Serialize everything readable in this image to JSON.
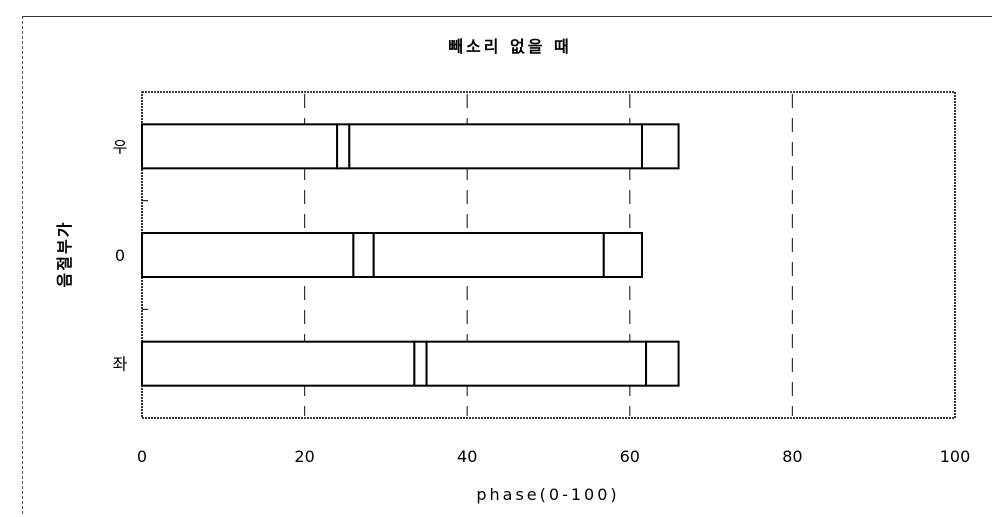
{
  "chart_data": {
    "type": "bar",
    "orientation": "horizontal",
    "stacked": true,
    "title": "빼소리 없을 때",
    "xlabel": "phase(0-100)",
    "ylabel": "음절부가",
    "xlim": [
      0,
      100
    ],
    "xticks": [
      "0",
      "20",
      "40",
      "60",
      "80",
      "100"
    ],
    "categories": [
      "우",
      "0",
      "좌"
    ],
    "grid": "vertical dashed",
    "legend": "none",
    "colors": {
      "bar_fill": "#ffffff",
      "bar_stroke": "#000000",
      "grid": "#333333"
    },
    "segments": [
      {
        "category": "우",
        "boundaries": [
          0,
          24,
          25.5,
          61.5,
          66
        ]
      },
      {
        "category": "0",
        "boundaries": [
          0,
          26,
          28.5,
          56.8,
          61.5
        ]
      },
      {
        "category": "좌",
        "boundaries": [
          0,
          33.5,
          35,
          62,
          66
        ]
      }
    ]
  }
}
